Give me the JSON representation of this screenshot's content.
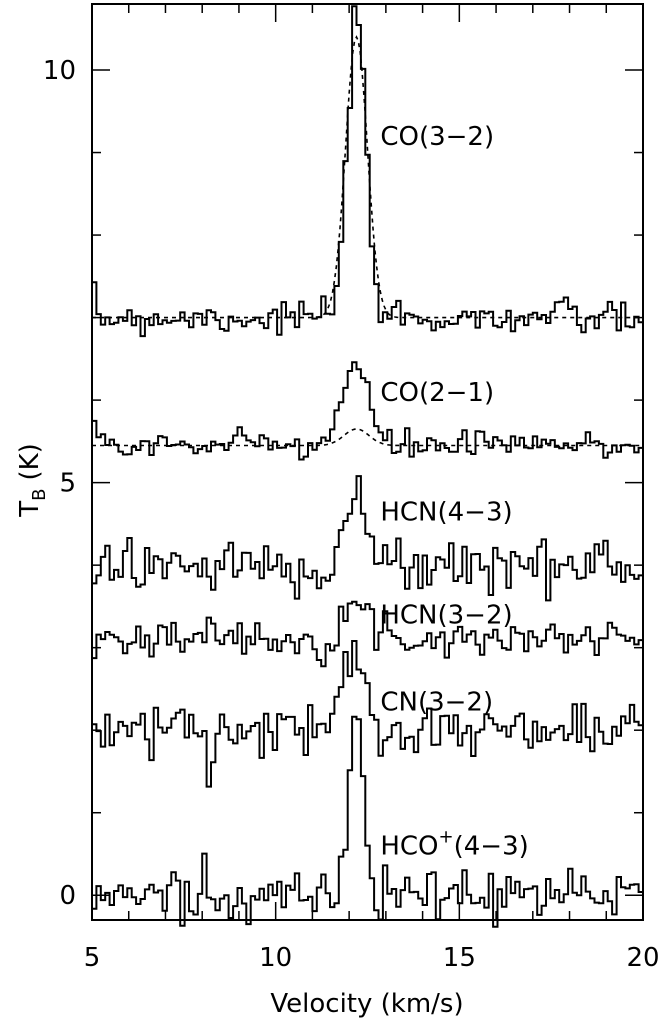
{
  "chart_data": {
    "type": "line",
    "xlabel": "Velocity (km/s)",
    "ylabel_main": "T",
    "ylabel_sub": "B",
    "ylabel_unit": "(K)",
    "xlim": [
      5,
      20
    ],
    "ylim": [
      -0.3,
      10.8
    ],
    "x_ticks": [
      5,
      10,
      15,
      20
    ],
    "x_tick_labels": [
      "5",
      "10",
      "15",
      "20"
    ],
    "y_ticks": [
      0,
      5,
      10
    ],
    "y_tick_labels": [
      "0",
      "5",
      "10"
    ],
    "x_minor_step": 1,
    "y_minor_step": 1,
    "channel_width_kms": 0.12,
    "series": [
      {
        "name": "CO(3−2)",
        "label_main": "CO(3−2)",
        "label_sup": "",
        "label_tail": "",
        "label_at": [
          12.85,
          9.2
        ],
        "baseline": 7.0,
        "noise": 0.11,
        "lines": [
          {
            "center": 12.2,
            "amp": 3.55,
            "fwhm": 0.6
          }
        ],
        "fit": {
          "baseline": 7.0,
          "center": 12.2,
          "amp": 3.4,
          "fwhm": 0.7,
          "style": "dotted"
        }
      },
      {
        "name": "CO(2−1)",
        "label_main": "CO(2−1)",
        "label_sup": "",
        "label_tail": "",
        "label_at": [
          12.85,
          6.1
        ],
        "baseline": 5.45,
        "noise": 0.09,
        "lines": [
          {
            "center": 12.15,
            "amp": 0.95,
            "fwhm": 0.85
          }
        ],
        "fit": {
          "baseline": 5.45,
          "center": 12.2,
          "amp": 0.2,
          "fwhm": 0.8,
          "style": "dashed"
        }
      },
      {
        "name": "HCN(4−3)",
        "label_main": "HCN(4−3)",
        "label_sup": "",
        "label_tail": "",
        "label_at": [
          12.85,
          4.65
        ],
        "baseline": 4.0,
        "noise": 0.18,
        "lines": [
          {
            "center": 12.15,
            "amp": 0.9,
            "fwhm": 0.6
          }
        ]
      },
      {
        "name": "HCN(3−2)",
        "label_main": "HCN(3−2)",
        "label_sup": "",
        "label_tail": "",
        "label_at": [
          12.85,
          3.4
        ],
        "baseline": 3.12,
        "noise": 0.1,
        "lines": [
          {
            "center": 12.2,
            "amp": 0.45,
            "fwhm": 0.7
          }
        ]
      },
      {
        "name": "CN(3−2)",
        "label_main": "CN(3−2)",
        "label_sup": "",
        "label_tail": "",
        "label_at": [
          12.85,
          2.35
        ],
        "baseline": 2.0,
        "noise": 0.16,
        "lines": [
          {
            "center": 12.15,
            "amp": 1.0,
            "fwhm": 0.8
          }
        ]
      },
      {
        "name": "HCO⁺(4−3)",
        "label_main": "HCO",
        "label_sup": "+",
        "label_tail": "(4−3)",
        "label_at": [
          12.85,
          0.6
        ],
        "baseline": 0.0,
        "noise": 0.16,
        "lines": [
          {
            "center": 12.2,
            "amp": 2.35,
            "fwhm": 0.42
          }
        ]
      }
    ]
  }
}
